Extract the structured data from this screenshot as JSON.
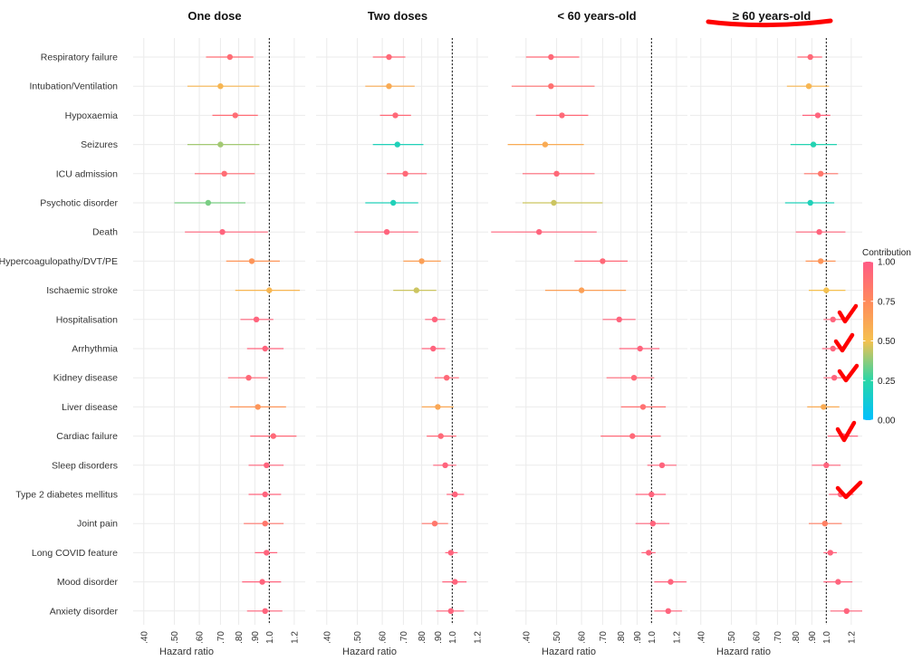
{
  "chart_data": {
    "type": "forest",
    "x_scale": "log",
    "xlim": [
      0.37,
      1.3
    ],
    "xticks": [
      0.4,
      0.5,
      0.6,
      0.7,
      0.8,
      0.9,
      1.0,
      1.2
    ],
    "xtick_labels": [
      ".40",
      ".50",
      ".60",
      ".70",
      ".80",
      ".90",
      "1.0",
      "1.2"
    ],
    "xlabel": "Hazard ratio",
    "reference_line": 1.0,
    "grid": true,
    "categories": [
      "Respiratory failure",
      "Intubation/Ventilation",
      "Hypoxaemia",
      "Seizures",
      "ICU admission",
      "Psychotic disorder",
      "Death",
      "Hypercoagulopathy/DVT/PE",
      "Ischaemic stroke",
      "Hospitalisation",
      "Arrhythmia",
      "Kidney disease",
      "Liver disease",
      "Cardiac failure",
      "Sleep disorders",
      "Type 2 diabetes mellitus",
      "Joint pain",
      "Long COVID feature",
      "Mood disorder",
      "Anxiety disorder"
    ],
    "legend": {
      "title": "Contribution",
      "ticks": [
        1.0,
        0.75,
        0.5,
        0.25,
        0.0
      ],
      "tick_labels": [
        "1.00",
        "0.75",
        "0.50",
        "0.25",
        "0.00"
      ],
      "colors": [
        "#00bfff",
        "#28d6a8",
        "#f5c14f",
        "#ff8a5c",
        "#ff5a85"
      ],
      "position": "right"
    },
    "panels": [
      {
        "title": "One dose",
        "hr": [
          0.75,
          0.7,
          0.78,
          0.7,
          0.72,
          0.64,
          0.71,
          0.88,
          1.0,
          0.91,
          0.97,
          0.86,
          0.92,
          1.03,
          0.98,
          0.97,
          0.97,
          0.98,
          0.95,
          0.97
        ],
        "lower": [
          0.63,
          0.55,
          0.66,
          0.55,
          0.58,
          0.5,
          0.54,
          0.73,
          0.78,
          0.81,
          0.85,
          0.74,
          0.75,
          0.87,
          0.86,
          0.86,
          0.83,
          0.9,
          0.82,
          0.85
        ],
        "upper": [
          0.89,
          0.93,
          0.92,
          0.93,
          0.9,
          0.84,
          0.99,
          1.08,
          1.25,
          1.03,
          1.11,
          0.99,
          1.13,
          1.22,
          1.11,
          1.09,
          1.11,
          1.06,
          1.09,
          1.1
        ],
        "contribution": [
          0.9,
          0.55,
          0.9,
          0.4,
          0.9,
          0.35,
          0.95,
          0.7,
          0.55,
          0.95,
          0.95,
          0.92,
          0.7,
          0.92,
          0.95,
          0.95,
          0.85,
          0.95,
          0.95,
          0.95
        ]
      },
      {
        "title": "Two doses",
        "hr": [
          0.63,
          0.63,
          0.66,
          0.67,
          0.71,
          0.65,
          0.62,
          0.8,
          0.77,
          0.88,
          0.87,
          0.96,
          0.9,
          0.92,
          0.95,
          1.02,
          0.88,
          0.99,
          1.02,
          0.99
        ],
        "lower": [
          0.56,
          0.53,
          0.59,
          0.56,
          0.62,
          0.53,
          0.49,
          0.7,
          0.65,
          0.82,
          0.8,
          0.88,
          0.8,
          0.83,
          0.87,
          0.96,
          0.8,
          0.95,
          0.93,
          0.89
        ],
        "upper": [
          0.71,
          0.76,
          0.74,
          0.81,
          0.83,
          0.78,
          0.78,
          0.92,
          0.89,
          0.95,
          0.95,
          1.05,
          1.01,
          1.03,
          1.03,
          1.09,
          0.97,
          1.04,
          1.11,
          1.09
        ],
        "contribution": [
          0.92,
          0.6,
          0.92,
          0.2,
          0.92,
          0.2,
          0.95,
          0.65,
          0.45,
          0.95,
          0.95,
          0.92,
          0.62,
          0.92,
          0.95,
          0.95,
          0.85,
          0.95,
          0.95,
          0.95
        ]
      },
      {
        "title": "< 60 years-old",
        "hr": [
          0.48,
          0.48,
          0.52,
          0.46,
          0.5,
          0.49,
          0.44,
          0.7,
          0.6,
          0.79,
          0.92,
          0.88,
          0.94,
          0.87,
          1.08,
          1.0,
          1.01,
          0.98,
          1.15,
          1.13
        ],
        "lower": [
          0.4,
          0.36,
          0.43,
          0.35,
          0.39,
          0.39,
          0.31,
          0.57,
          0.46,
          0.7,
          0.79,
          0.72,
          0.8,
          0.69,
          0.97,
          0.89,
          0.89,
          0.93,
          1.02,
          1.02
        ],
        "upper": [
          0.59,
          0.66,
          0.63,
          0.61,
          0.66,
          0.7,
          0.67,
          0.84,
          0.83,
          0.89,
          1.06,
          1.02,
          1.11,
          1.07,
          1.2,
          1.11,
          1.14,
          1.03,
          1.29,
          1.25
        ],
        "contribution": [
          0.92,
          0.88,
          0.92,
          0.6,
          0.92,
          0.45,
          0.95,
          0.92,
          0.65,
          0.95,
          0.95,
          0.92,
          0.88,
          0.92,
          0.95,
          0.95,
          0.95,
          0.95,
          0.95,
          0.95
        ]
      },
      {
        "title": "≥ 60 years-old",
        "hr": [
          0.89,
          0.88,
          0.94,
          0.91,
          0.96,
          0.89,
          0.95,
          0.96,
          1.0,
          1.05,
          1.05,
          1.06,
          0.98,
          1.13,
          1.0,
          1.11,
          0.99,
          1.03,
          1.09,
          1.16
        ],
        "lower": [
          0.81,
          0.75,
          0.84,
          0.77,
          0.85,
          0.74,
          0.8,
          0.86,
          0.88,
          0.98,
          0.97,
          0.98,
          0.87,
          1.01,
          0.9,
          1.02,
          0.88,
          0.98,
          0.98,
          1.03
        ],
        "upper": [
          0.97,
          1.02,
          1.03,
          1.08,
          1.09,
          1.06,
          1.15,
          1.07,
          1.15,
          1.13,
          1.14,
          1.15,
          1.1,
          1.26,
          1.11,
          1.22,
          1.12,
          1.08,
          1.21,
          1.3
        ],
        "contribution": [
          0.92,
          0.55,
          0.95,
          0.22,
          0.85,
          0.2,
          0.95,
          0.7,
          0.5,
          0.95,
          0.95,
          0.95,
          0.6,
          0.95,
          0.95,
          0.95,
          0.8,
          0.95,
          0.95,
          0.95
        ]
      }
    ]
  }
}
